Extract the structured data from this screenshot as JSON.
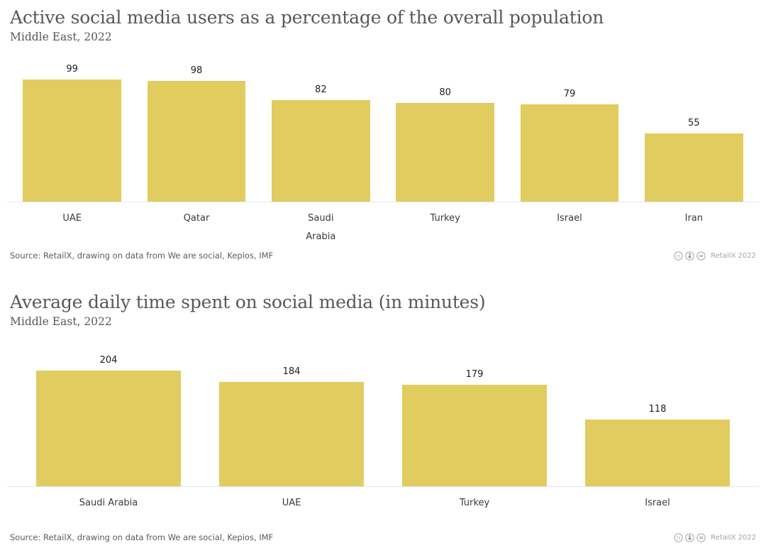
{
  "colors": {
    "bar": "#e1cc5f",
    "title_text": "#57585a",
    "axis_line": "#e2e6ee",
    "value_label": "#1d1d1d",
    "source_text": "#5a5a5c",
    "attribution_text": "#a4a4a4"
  },
  "chart_data": [
    {
      "type": "bar",
      "title": "Active social media users as a percentage of the overall population",
      "subtitle": "Middle East, 2022",
      "categories": [
        "UAE",
        "Qatar",
        "Saudi Arabia",
        "Turkey",
        "Israel",
        "Iran"
      ],
      "values": [
        99,
        98,
        82,
        80,
        79,
        55
      ],
      "xlabel": "",
      "ylabel": "",
      "ylim": [
        0,
        115
      ],
      "grid": false,
      "legend": false,
      "value_labels": true,
      "bar_color": "#e1cc5f",
      "source": "Source: RetailX, drawing on data from We are social, Kepios, IMF",
      "attribution": "RetailX 2022",
      "license_icons": [
        "cc",
        "attribution",
        "no-derivatives"
      ]
    },
    {
      "type": "bar",
      "title": "Average daily time spent on social media (in minutes)",
      "subtitle": "Middle East, 2022",
      "categories": [
        "Saudi Arabia",
        "UAE",
        "Turkey",
        "Israel"
      ],
      "values": [
        204,
        184,
        179,
        118
      ],
      "xlabel": "",
      "ylabel": "",
      "ylim": [
        0,
        250
      ],
      "grid": false,
      "legend": false,
      "value_labels": true,
      "bar_color": "#e1cc5f",
      "source": "Source: RetailX, drawing on data from We are social, Kepios, IMF",
      "attribution": "RetailX 2022",
      "license_icons": [
        "cc",
        "attribution",
        "no-derivatives"
      ]
    }
  ]
}
